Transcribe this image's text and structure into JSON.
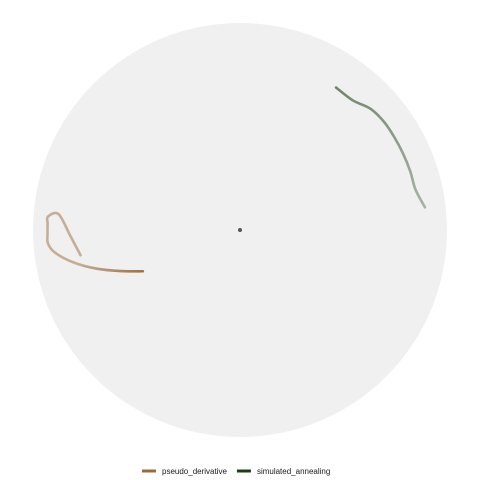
{
  "chart_data": {
    "type": "line",
    "coordinate_system": "polar",
    "title": "",
    "xlabel": "",
    "ylabel": "",
    "grid": false,
    "background": "#f0f0f0",
    "legend_position": "bottom",
    "theta_range_deg": [
      0,
      360
    ],
    "theta_zero": "top",
    "theta_direction": "clockwise",
    "r_range": [
      0,
      1
    ],
    "center_marker": true,
    "series": [
      {
        "name": "pseudo_derivative",
        "color": "#9c6b3c",
        "theta_deg": [
          247,
          251,
          255,
          259,
          263,
          266,
          269,
          272,
          274,
          275,
          268,
          261
        ],
        "r": [
          0.51,
          0.61,
          0.72,
          0.82,
          0.9,
          0.93,
          0.93,
          0.93,
          0.93,
          0.88,
          0.82,
          0.78
        ],
        "opacity_start": 0.95,
        "opacity_end": 0.5
      },
      {
        "name": "simulated_annealing",
        "color": "#1e3f14",
        "theta_deg": [
          34,
          41,
          47,
          53,
          59,
          65,
          71,
          77,
          83
        ],
        "r": [
          0.83,
          0.83,
          0.86,
          0.87,
          0.87,
          0.87,
          0.87,
          0.87,
          0.9
        ],
        "opacity_start": 0.6,
        "opacity_end": 0.35
      }
    ]
  }
}
